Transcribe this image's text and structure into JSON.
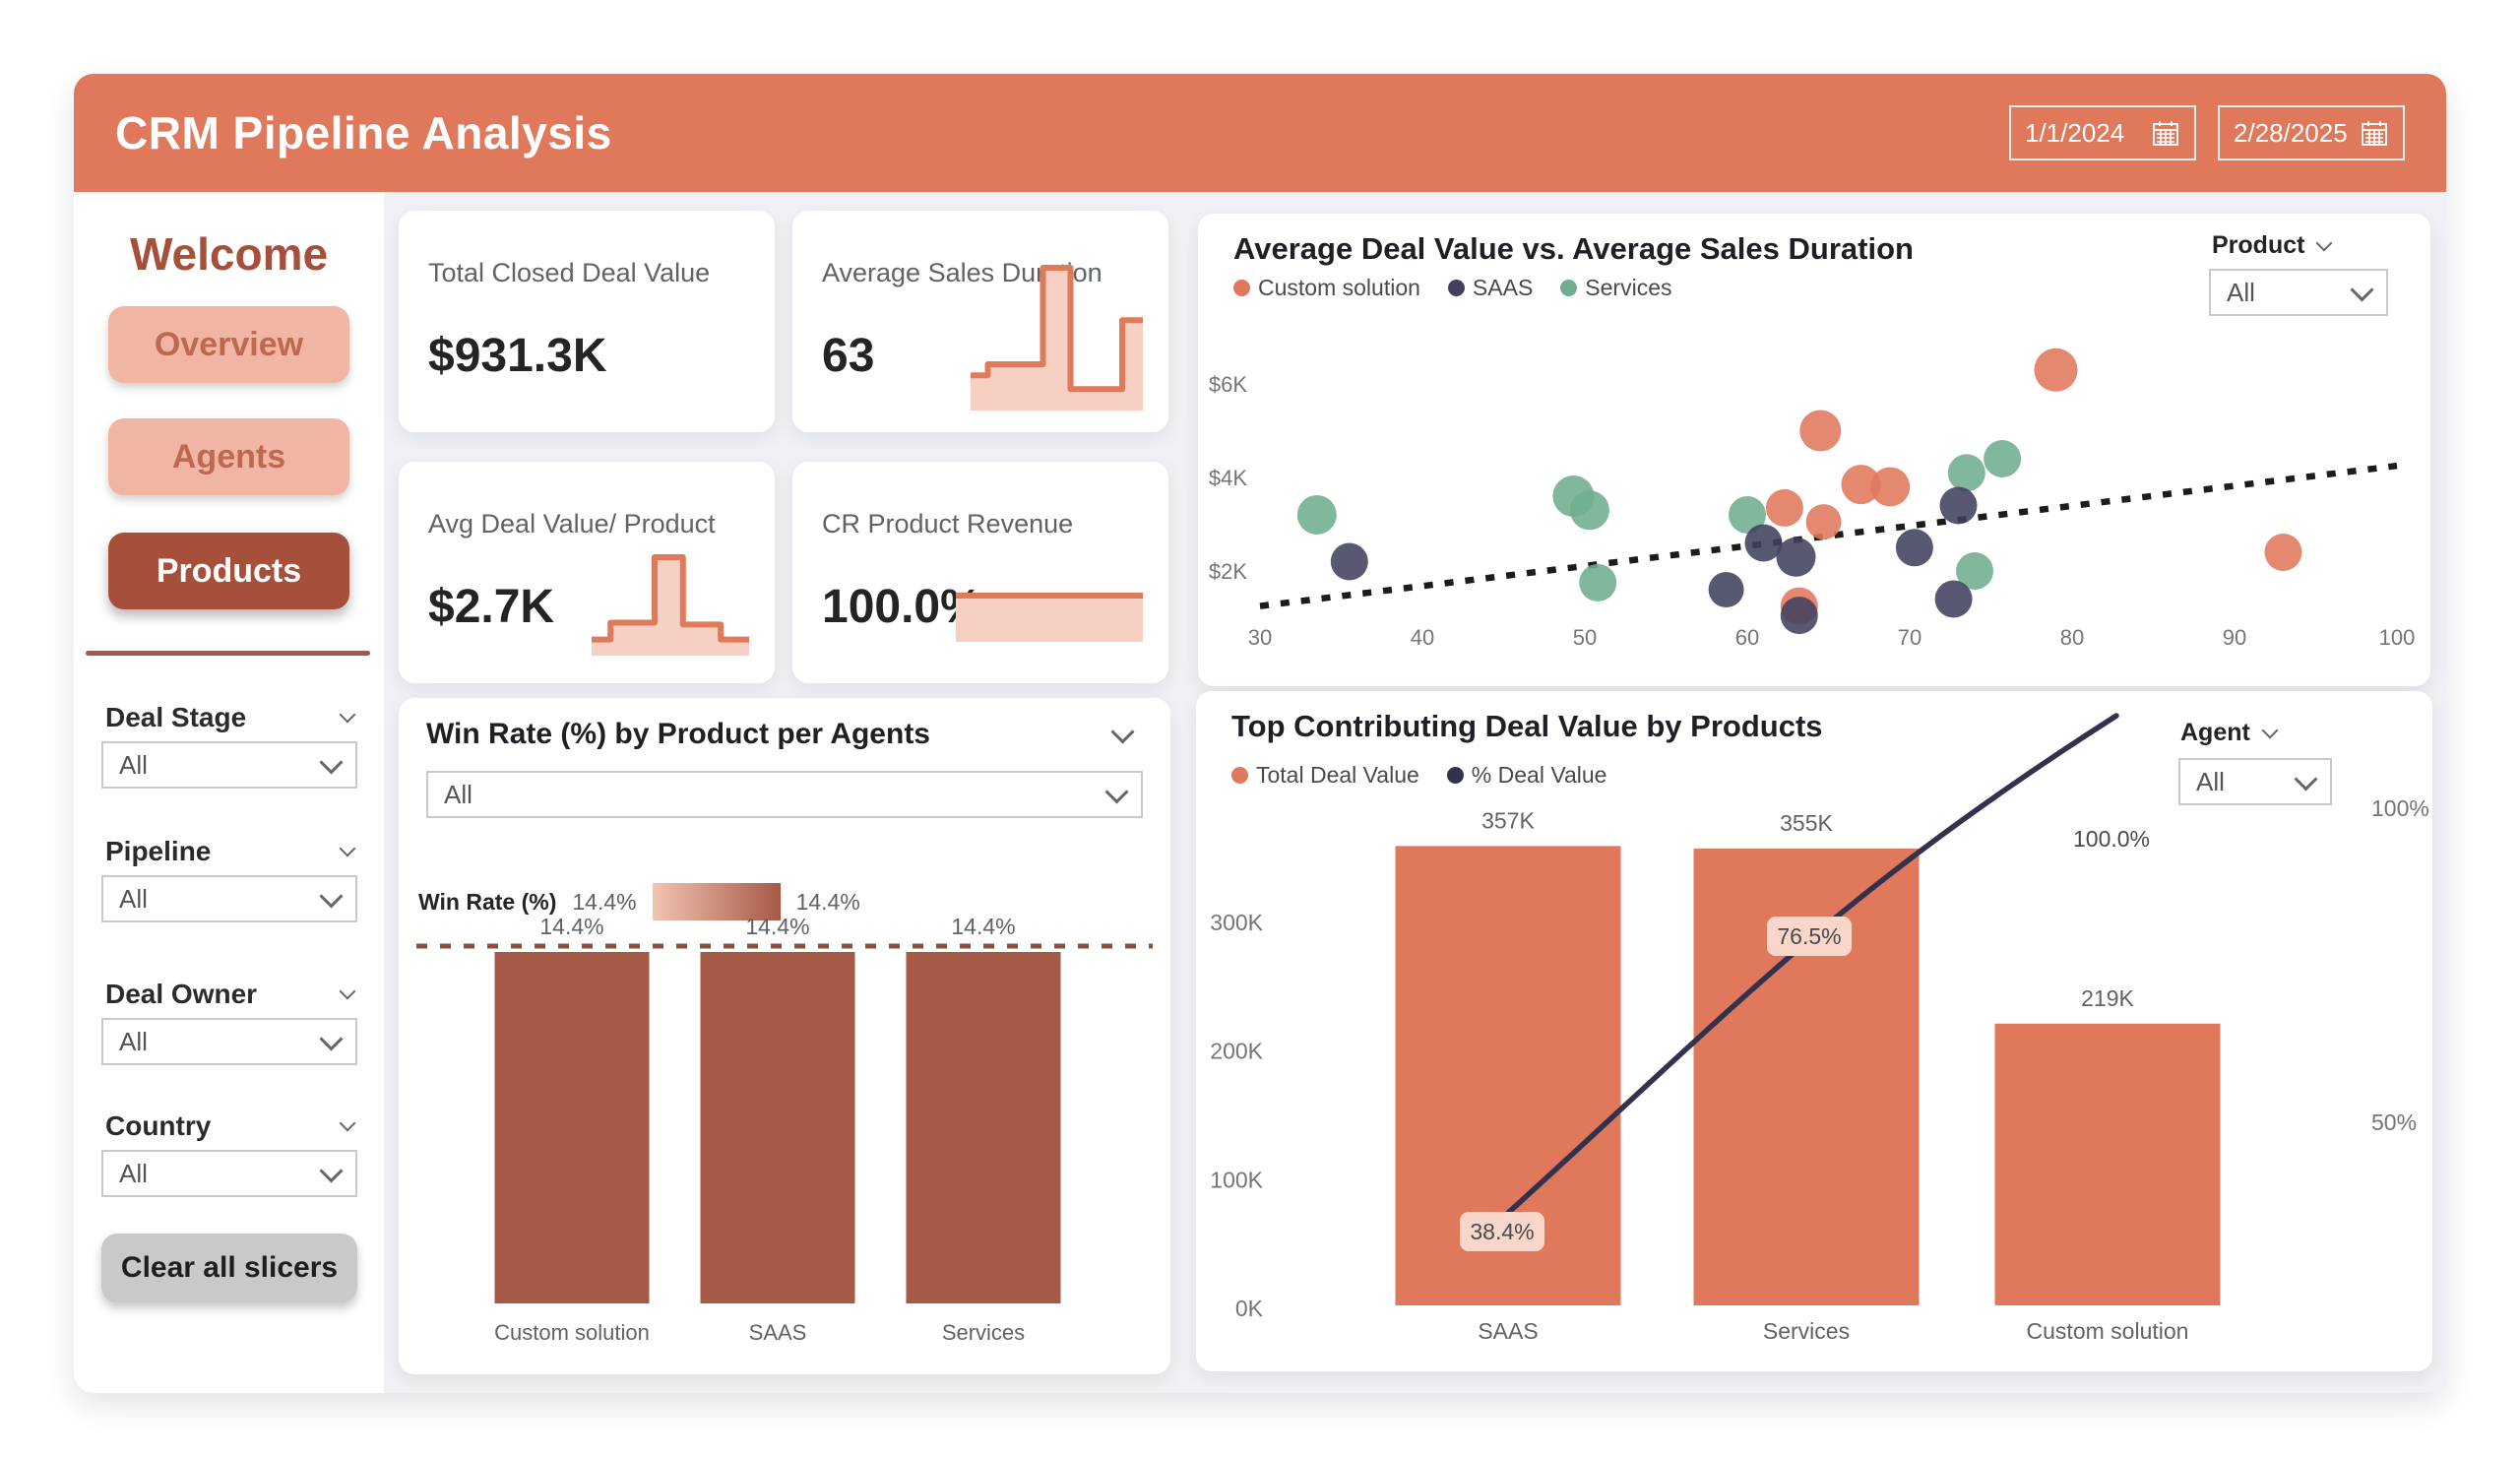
{
  "header": {
    "title": "CRM Pipeline Analysis",
    "date_start": "1/1/2024",
    "date_end": "2/28/2025"
  },
  "theme": {
    "accent_coral": "#E0795C",
    "navy": "#32324E",
    "green": "#6FAE90",
    "brick": "#A65A46",
    "sidebar_button_light": "#F0B5A3",
    "sidebar_button_dark": "#A64F3B",
    "card_bg": "#FFFFFF",
    "canvas_bg": "#EFF1F4"
  },
  "sidebar": {
    "welcome": "Welcome",
    "nav": [
      {
        "label": "Overview",
        "active": false
      },
      {
        "label": "Agents",
        "active": false
      },
      {
        "label": "Products",
        "active": true
      }
    ],
    "slicers": [
      {
        "label": "Deal Stage",
        "value": "All"
      },
      {
        "label": "Pipeline",
        "value": "All"
      },
      {
        "label": "Deal Owner",
        "value": "All"
      },
      {
        "label": "Country",
        "value": "All"
      }
    ],
    "clear_button": "Clear all slicers"
  },
  "kpis": [
    {
      "title": "Total Closed Deal Value",
      "value": "$931.3K",
      "spark": null
    },
    {
      "title": "Average Sales Duration",
      "value": "63",
      "spark": [
        [
          0,
          0.22
        ],
        [
          0.1,
          0.22
        ],
        [
          0.1,
          0.3
        ],
        [
          0.42,
          0.3
        ],
        [
          0.42,
          1
        ],
        [
          0.58,
          1
        ],
        [
          0.58,
          0.12
        ],
        [
          0.88,
          0.12
        ],
        [
          0.88,
          0.62
        ],
        [
          1,
          0.62
        ]
      ]
    },
    {
      "title": "Avg Deal Value/ Product",
      "value": "$2.7K",
      "spark": [
        [
          0,
          0.12
        ],
        [
          0.12,
          0.12
        ],
        [
          0.12,
          0.3
        ],
        [
          0.4,
          0.3
        ],
        [
          0.4,
          1
        ],
        [
          0.58,
          1
        ],
        [
          0.58,
          0.28
        ],
        [
          0.82,
          0.28
        ],
        [
          0.82,
          0.12
        ],
        [
          1,
          0.12
        ]
      ]
    },
    {
      "title": "CR Product Revenue",
      "value": "100.0%",
      "spark": [
        [
          0,
          1
        ],
        [
          1,
          1
        ]
      ]
    }
  ],
  "chart_data": [
    {
      "type": "scatter",
      "title": "Average Deal Value vs. Average Sales Duration",
      "filter": {
        "label": "Product",
        "value": "All"
      },
      "x_ticks": [
        30,
        40,
        50,
        60,
        70,
        80,
        90,
        100
      ],
      "y_ticks": [
        {
          "label": "$2K",
          "value": 2
        },
        {
          "label": "$4K",
          "value": 4
        },
        {
          "label": "$6K",
          "value": 6
        }
      ],
      "x_range": [
        30,
        100
      ],
      "y_unit": "USD K",
      "series": [
        {
          "name": "Custom solution",
          "color": "#E0785C",
          "points": [
            [
              79,
              6.3,
              22
            ],
            [
              64.5,
              5.0,
              21
            ],
            [
              67,
              3.85,
              20
            ],
            [
              68.8,
              3.8,
              20
            ],
            [
              62.3,
              3.35,
              19
            ],
            [
              64.7,
              3.05,
              18
            ],
            [
              63.2,
              1.25,
              19
            ],
            [
              93,
              2.4,
              19
            ]
          ]
        },
        {
          "name": "SAAS",
          "color": "#41415F",
          "points": [
            [
              35.5,
              2.2,
              19
            ],
            [
              61,
              2.6,
              19
            ],
            [
              63,
              2.3,
              20
            ],
            [
              58.7,
              1.6,
              18
            ],
            [
              63.2,
              1.05,
              19
            ],
            [
              70.3,
              2.5,
              19
            ],
            [
              73,
              3.4,
              19
            ],
            [
              72.7,
              1.4,
              19
            ]
          ]
        },
        {
          "name": "Services",
          "color": "#6FAE90",
          "points": [
            [
              33.5,
              3.2,
              20
            ],
            [
              49.3,
              3.6,
              21
            ],
            [
              50.3,
              3.3,
              20
            ],
            [
              50.8,
              1.75,
              19
            ],
            [
              60,
              3.2,
              19
            ],
            [
              73.5,
              4.1,
              19
            ],
            [
              75.7,
              4.4,
              19
            ],
            [
              74,
              2.0,
              19
            ]
          ]
        }
      ],
      "trendline": {
        "from": [
          30,
          1.25
        ],
        "to": [
          100,
          4.25
        ],
        "style": "dotted",
        "color": "#1C1C1C"
      }
    },
    {
      "type": "bar",
      "title": "Win Rate (%) by Product per Agents",
      "dropdown_value": "All",
      "legend": {
        "label": "Win Rate (%)",
        "min_label": "14.4%",
        "max_label": "14.4%",
        "gradient": [
          "#F2C3B2",
          "#A65A46"
        ]
      },
      "categories": [
        "Custom solution",
        "SAAS",
        "Services"
      ],
      "values": [
        14.4,
        14.4,
        14.4
      ],
      "value_labels": [
        "14.4%",
        "14.4%",
        "14.4%"
      ],
      "bar_color": "#A65A46",
      "ref_line": {
        "value": 14.4,
        "style": "dashed",
        "color": "#8F4E3C"
      }
    },
    {
      "type": "bar+line",
      "title": "Top Contributing Deal Value by Products",
      "filter": {
        "label": "Agent",
        "value": "All"
      },
      "legend": [
        {
          "name": "Total Deal Value",
          "color": "#E0785C"
        },
        {
          "name": "% Deal Value",
          "color": "#32324E"
        }
      ],
      "categories": [
        "SAAS",
        "Services",
        "Custom solution"
      ],
      "bar_values_k": [
        357,
        355,
        219
      ],
      "bar_labels": [
        "357K",
        "355K",
        "219K"
      ],
      "line_values_pct": [
        38.4,
        76.5,
        100.0
      ],
      "line_labels": [
        "38.4%",
        "76.5%",
        "100.0%"
      ],
      "left_ticks": [
        "0K",
        "100K",
        "200K",
        "300K"
      ],
      "right_ticks": [
        "100%",
        "50%"
      ],
      "bar_color": "#E0785C",
      "line_color": "#32324E",
      "label_pill_bg": "#F8D7CA"
    }
  ]
}
